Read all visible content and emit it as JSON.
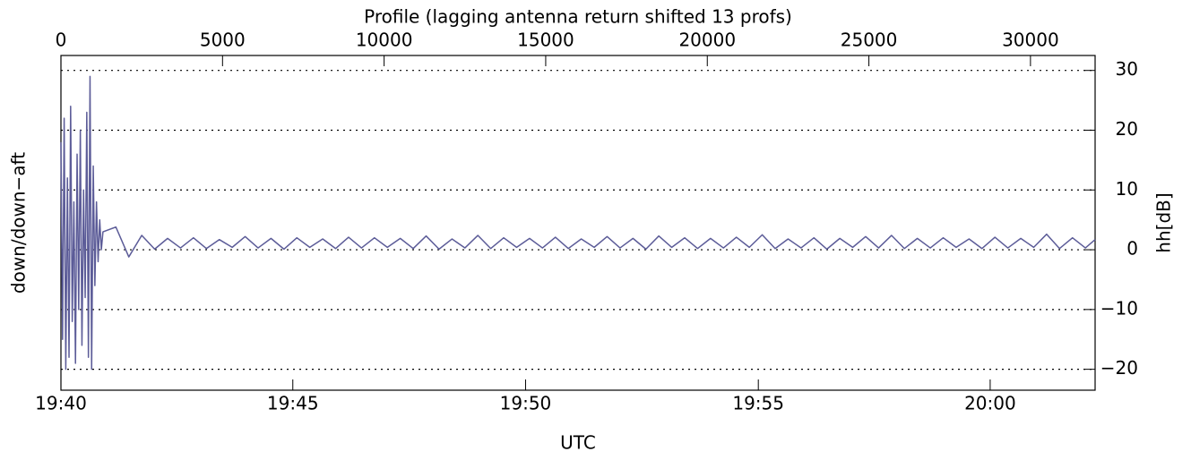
{
  "chart_data": {
    "type": "line",
    "xlabel_top": "Profile (lagging antenna return shifted 13 profs)",
    "xlabel": "UTC",
    "ylabel": "down/down−aft",
    "y2label": "hh[dB]",
    "xlim": [
      0,
      32000
    ],
    "xticks": [
      0,
      5000,
      10000,
      15000,
      20000,
      25000,
      30000
    ],
    "x2ticks": [
      {
        "value": 0,
        "label": "19:40"
      },
      {
        "value": 7175,
        "label": "19:45"
      },
      {
        "value": 14377,
        "label": "19:50"
      },
      {
        "value": 21579,
        "label": "19:55"
      },
      {
        "value": 28753,
        "label": "20:00"
      }
    ],
    "ylim": [
      -23.5,
      32.5
    ],
    "yticks": [
      {
        "value": 30,
        "label": "30"
      },
      {
        "value": 20,
        "label": "20"
      },
      {
        "value": 10,
        "label": "10"
      },
      {
        "value": 0,
        "label": "0"
      },
      {
        "value": -10,
        "label": "−10"
      },
      {
        "value": -20,
        "label": "−20"
      }
    ],
    "grid": true,
    "x": [
      0,
      50,
      100,
      150,
      200,
      250,
      300,
      350,
      400,
      450,
      500,
      550,
      600,
      650,
      700,
      750,
      800,
      850,
      900,
      950,
      1000,
      1050,
      1100,
      1150,
      1200,
      1250,
      1300,
      1700,
      2100,
      2500,
      2900,
      3300,
      3700,
      4100,
      4500,
      4900,
      5300,
      5700,
      6100,
      6500,
      6900,
      7300,
      7700,
      8100,
      8500,
      8900,
      9300,
      9700,
      10100,
      10500,
      10900,
      11300,
      11700,
      12100,
      12500,
      12900,
      13300,
      13700,
      14100,
      14500,
      14900,
      15300,
      15700,
      16100,
      16500,
      16900,
      17300,
      17700,
      18100,
      18500,
      18900,
      19300,
      19700,
      20100,
      20500,
      20900,
      21300,
      21700,
      22100,
      22500,
      22900,
      23300,
      23700,
      24100,
      24500,
      24900,
      25300,
      25700,
      26100,
      26500,
      26900,
      27300,
      27700,
      28100,
      28500,
      28900,
      29300,
      29700,
      30100,
      30500,
      30900,
      31300,
      31700,
      32000
    ],
    "series": [
      {
        "color": "#5c5c98",
        "values": [
          18,
          -15,
          22,
          -20,
          12,
          -18,
          24,
          -12,
          8,
          -19,
          16,
          -10,
          20,
          -16,
          10,
          -8,
          23,
          -18,
          29,
          -20,
          14,
          -6,
          8,
          -2,
          5,
          0,
          3,
          3.8,
          -1.2,
          2.4,
          0.1,
          1.9,
          0.3,
          2.0,
          0.2,
          1.7,
          0.4,
          2.2,
          0.3,
          1.9,
          0.1,
          2.0,
          0.4,
          1.8,
          0.2,
          2.1,
          0.3,
          2.0,
          0.4,
          1.9,
          0.2,
          2.3,
          0.1,
          1.8,
          0.3,
          2.4,
          0.2,
          2.0,
          0.4,
          1.9,
          0.3,
          2.1,
          0.2,
          1.8,
          0.4,
          2.2,
          0.3,
          1.9,
          0.1,
          2.3,
          0.4,
          2.0,
          0.2,
          1.9,
          0.3,
          2.1,
          0.4,
          2.5,
          0.2,
          1.8,
          0.3,
          2.0,
          0.1,
          1.9,
          0.4,
          2.2,
          0.3,
          2.4,
          0.2,
          1.9,
          0.3,
          2.0,
          0.4,
          1.8,
          0.2,
          2.1,
          0.3,
          1.9,
          0.4,
          2.6,
          0.2,
          2.0,
          0.3,
          1.7
        ]
      }
    ]
  }
}
